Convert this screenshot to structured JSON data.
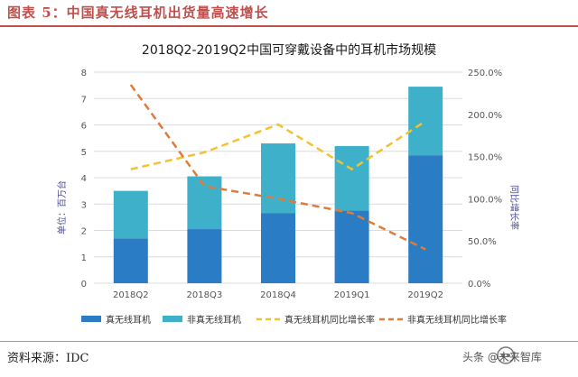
{
  "header": {
    "title": "图表 5：中国真无线耳机出货量高速增长"
  },
  "footer": {
    "source": "资料来源：IDC",
    "watermark": "头条 @未来智库"
  },
  "colors": {
    "true_wireless": "#2a7dc4",
    "non_true_wireless": "#3fb0c9",
    "true_growth": "#f1c232",
    "non_true_growth": "#e07b39",
    "header": "#c0504d"
  },
  "chart_data": {
    "type": "bar",
    "stacked": true,
    "title": "2018Q2-2019Q2中国可穿戴设备中的耳机市场规模",
    "categories": [
      "2018Q2",
      "2018Q3",
      "2018Q4",
      "2019Q1",
      "2019Q2"
    ],
    "ylabel": "单位：百万台",
    "y2label": "同比增长率",
    "ylim": [
      0,
      8
    ],
    "yticks": [
      "0",
      "1",
      "2",
      "3",
      "4",
      "5",
      "6",
      "7",
      "8"
    ],
    "y2lim": [
      0,
      250
    ],
    "y2ticks": [
      "0.0%",
      "50.0%",
      "100.0%",
      "150.0%",
      "200.0%",
      "250.0%"
    ],
    "series": [
      {
        "name": "真无线耳机",
        "kind": "bar",
        "axis": "left",
        "values": [
          1.7,
          2.05,
          2.65,
          2.75,
          4.85
        ]
      },
      {
        "name": "非真无线耳机",
        "kind": "bar",
        "axis": "left",
        "values": [
          1.8,
          2.0,
          2.65,
          2.45,
          2.6
        ]
      },
      {
        "name": "真无线耳机同比增长率",
        "kind": "line",
        "axis": "right",
        "values": [
          135,
          155,
          188,
          135,
          192
        ]
      },
      {
        "name": "非真无线耳机同比增长率",
        "kind": "line",
        "axis": "right",
        "values": [
          235,
          115,
          100,
          83,
          40
        ]
      }
    ]
  }
}
